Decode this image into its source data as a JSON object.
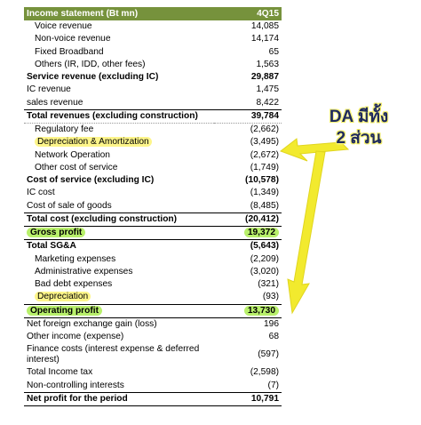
{
  "table": {
    "header": {
      "label": "Income statement (Bt mn)",
      "period": "4Q15"
    },
    "rows": [
      {
        "label": "Voice revenue",
        "value": "14,085"
      },
      {
        "label": "Non-voice revenue",
        "value": "14,174"
      },
      {
        "label": "Fixed Broadband",
        "value": "65"
      },
      {
        "label": "Others (IR, IDD, other fees)",
        "value": "1,563"
      },
      {
        "label": "Service revenue (excluding IC)",
        "value": "29,887"
      },
      {
        "label": "IC revenue",
        "value": "1,475"
      },
      {
        "label": "sales revenue",
        "value": "8,422"
      },
      {
        "label": "Total revenues (excluding construction)",
        "value": "39,784"
      },
      {
        "label": "Regulatory fee",
        "value": "(2,662)"
      },
      {
        "label": "Depreciation & Amortization",
        "value": "(3,495)"
      },
      {
        "label": "Network Operation",
        "value": "(2,672)"
      },
      {
        "label": "Other cost of service",
        "value": "(1,749)"
      },
      {
        "label": "Cost of service (excluding IC)",
        "value": "(10,578)"
      },
      {
        "label": "IC cost",
        "value": "(1,349)"
      },
      {
        "label": "Cost of sale of goods",
        "value": "(8,485)"
      },
      {
        "label": "Total cost (excluding construction)",
        "value": "(20,412)"
      },
      {
        "label": "Gross profit",
        "value": "19,372"
      },
      {
        "label": "Total SG&A",
        "value": "(5,643)"
      },
      {
        "label": "Marketing expenses",
        "value": "(2,209)"
      },
      {
        "label": "Administrative expenses",
        "value": "(3,020)"
      },
      {
        "label": "Bad debt expenses",
        "value": "(321)"
      },
      {
        "label": "Depreciation",
        "value": "(93)"
      },
      {
        "label": "Operating profit",
        "value": "13,730"
      },
      {
        "label": "Net foreign exchange gain (loss)",
        "value": "196"
      },
      {
        "label": "Other income (expense)",
        "value": "68"
      },
      {
        "label": "Finance costs (interest expense & deferred interest)",
        "value": "(597)"
      },
      {
        "label": "Total Income tax",
        "value": "(2,598)"
      },
      {
        "label": "Non-controlling interests",
        "value": "(7)"
      },
      {
        "label": "Net profit for the period",
        "value": "10,791"
      }
    ]
  },
  "callout": {
    "line1": "DA มีทั้ง",
    "line2": "2 ส่วน"
  },
  "colors": {
    "header_bg": "#76923c",
    "highlight_yellow": "#fdf58a",
    "highlight_green": "#b8f06b",
    "arrow": "#f2ea2e"
  }
}
